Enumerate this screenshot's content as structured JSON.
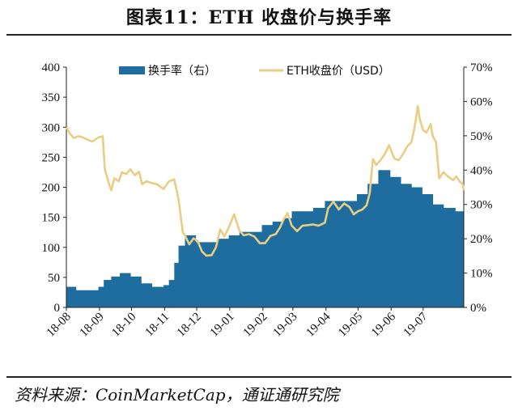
{
  "title": "图表11：ETH 收盘价与换手率",
  "source": "资料来源：CoinMarketCap，通证通研究院",
  "chart_data": {
    "type": "combo",
    "colors": {
      "bar": "#1f6d9e",
      "line": "#e8cd83"
    },
    "legend": {
      "placement": "top",
      "entries": [
        "换手率（右）",
        "ETH收盘价（USD）"
      ]
    },
    "x_ticks": [
      "18-08",
      "18-09",
      "18-10",
      "18-11",
      "18-12",
      "19-01",
      "19-02",
      "19-03",
      "19-04",
      "19-05",
      "19-06",
      "19-07"
    ],
    "y_left": {
      "ticks": [
        "0",
        "50",
        "100",
        "150",
        "200",
        "250",
        "300",
        "350",
        "400"
      ],
      "lim": [
        0,
        400
      ]
    },
    "y_right": {
      "ticks": [
        "0%",
        "10%",
        "20%",
        "30%",
        "40%",
        "50%",
        "60%",
        "70%"
      ],
      "lim": [
        0,
        70
      ]
    },
    "series": [
      {
        "name": "ETH收盘价（USD）",
        "axis": "left",
        "kind": "line",
        "points": [
          [
            "2018-08-01",
            300
          ],
          [
            "2018-08-04",
            290
          ],
          [
            "2018-08-08",
            282
          ],
          [
            "2018-08-12",
            285
          ],
          [
            "2018-08-15",
            284
          ],
          [
            "2018-08-20",
            280
          ],
          [
            "2018-08-25",
            276
          ],
          [
            "2018-08-31",
            283
          ],
          [
            "2018-09-04",
            285
          ],
          [
            "2018-09-06",
            230
          ],
          [
            "2018-09-10",
            205
          ],
          [
            "2018-09-12",
            195
          ],
          [
            "2018-09-15",
            215
          ],
          [
            "2018-09-19",
            210
          ],
          [
            "2018-09-22",
            225
          ],
          [
            "2018-09-26",
            222
          ],
          [
            "2018-09-30",
            230
          ],
          [
            "2018-10-04",
            220
          ],
          [
            "2018-10-08",
            226
          ],
          [
            "2018-10-11",
            205
          ],
          [
            "2018-10-15",
            210
          ],
          [
            "2018-10-20",
            207
          ],
          [
            "2018-10-25",
            205
          ],
          [
            "2018-10-31",
            197
          ],
          [
            "2018-11-05",
            210
          ],
          [
            "2018-11-10",
            213
          ],
          [
            "2018-11-14",
            180
          ],
          [
            "2018-11-18",
            125
          ],
          [
            "2018-11-20",
            120
          ],
          [
            "2018-11-24",
            105
          ],
          [
            "2018-11-28",
            115
          ],
          [
            "2018-12-02",
            110
          ],
          [
            "2018-12-06",
            93
          ],
          [
            "2018-12-10",
            86
          ],
          [
            "2018-12-15",
            87
          ],
          [
            "2018-12-19",
            100
          ],
          [
            "2018-12-23",
            130
          ],
          [
            "2018-12-27",
            118
          ],
          [
            "2018-12-31",
            133
          ],
          [
            "2019-01-05",
            155
          ],
          [
            "2019-01-10",
            128
          ],
          [
            "2019-01-14",
            120
          ],
          [
            "2019-01-19",
            122
          ],
          [
            "2019-01-24",
            118
          ],
          [
            "2019-01-29",
            107
          ],
          [
            "2019-02-03",
            107
          ],
          [
            "2019-02-08",
            119
          ],
          [
            "2019-02-13",
            122
          ],
          [
            "2019-02-17",
            133
          ],
          [
            "2019-02-20",
            145
          ],
          [
            "2019-02-24",
            157
          ],
          [
            "2019-02-28",
            136
          ],
          [
            "2019-03-05",
            127
          ],
          [
            "2019-03-10",
            136
          ],
          [
            "2019-03-15",
            137
          ],
          [
            "2019-03-20",
            138
          ],
          [
            "2019-03-25",
            136
          ],
          [
            "2019-03-31",
            141
          ],
          [
            "2019-04-03",
            165
          ],
          [
            "2019-04-08",
            176
          ],
          [
            "2019-04-13",
            163
          ],
          [
            "2019-04-18",
            173
          ],
          [
            "2019-04-23",
            167
          ],
          [
            "2019-04-27",
            155
          ],
          [
            "2019-05-01",
            160
          ],
          [
            "2019-05-05",
            163
          ],
          [
            "2019-05-09",
            170
          ],
          [
            "2019-05-12",
            190
          ],
          [
            "2019-05-15",
            247
          ],
          [
            "2019-05-18",
            237
          ],
          [
            "2019-05-22",
            245
          ],
          [
            "2019-05-26",
            255
          ],
          [
            "2019-05-30",
            270
          ],
          [
            "2019-06-04",
            248
          ],
          [
            "2019-06-08",
            245
          ],
          [
            "2019-06-12",
            255
          ],
          [
            "2019-06-16",
            268
          ],
          [
            "2019-06-20",
            275
          ],
          [
            "2019-06-23",
            300
          ],
          [
            "2019-06-26",
            335
          ],
          [
            "2019-06-28",
            312
          ],
          [
            "2019-07-01",
            295
          ],
          [
            "2019-07-04",
            291
          ],
          [
            "2019-07-08",
            305
          ],
          [
            "2019-07-10",
            285
          ],
          [
            "2019-07-13",
            275
          ],
          [
            "2019-07-16",
            215
          ],
          [
            "2019-07-20",
            225
          ],
          [
            "2019-07-25",
            217
          ],
          [
            "2019-07-29",
            212
          ],
          [
            "2019-08-01",
            218
          ],
          [
            "2019-08-04",
            210
          ],
          [
            "2019-08-07",
            205
          ],
          [
            "2019-08-08",
            195
          ]
        ]
      },
      {
        "name": "换手率（右）",
        "axis": "right",
        "kind": "area",
        "points": [
          [
            "2018-08-01",
            6
          ],
          [
            "2018-08-10",
            5
          ],
          [
            "2018-08-20",
            5
          ],
          [
            "2018-08-31",
            6
          ],
          [
            "2018-09-05",
            8
          ],
          [
            "2018-09-12",
            9
          ],
          [
            "2018-09-20",
            10
          ],
          [
            "2018-09-30",
            9
          ],
          [
            "2018-10-10",
            7
          ],
          [
            "2018-10-20",
            6
          ],
          [
            "2018-10-31",
            6.5
          ],
          [
            "2018-11-05",
            8
          ],
          [
            "2018-11-10",
            13
          ],
          [
            "2018-11-14",
            18
          ],
          [
            "2018-11-20",
            21
          ],
          [
            "2018-11-30",
            19
          ],
          [
            "2018-12-10",
            19
          ],
          [
            "2018-12-20",
            20
          ],
          [
            "2018-12-31",
            21
          ],
          [
            "2019-01-10",
            22
          ],
          [
            "2019-01-20",
            22
          ],
          [
            "2019-01-31",
            24
          ],
          [
            "2019-02-10",
            25
          ],
          [
            "2019-02-20",
            26
          ],
          [
            "2019-02-28",
            28
          ],
          [
            "2019-03-10",
            28
          ],
          [
            "2019-03-20",
            29
          ],
          [
            "2019-03-31",
            31
          ],
          [
            "2019-04-10",
            31
          ],
          [
            "2019-04-20",
            31
          ],
          [
            "2019-04-30",
            33
          ],
          [
            "2019-05-10",
            36
          ],
          [
            "2019-05-20",
            40
          ],
          [
            "2019-05-31",
            38
          ],
          [
            "2019-06-10",
            36
          ],
          [
            "2019-06-20",
            35
          ],
          [
            "2019-06-30",
            33
          ],
          [
            "2019-07-10",
            30
          ],
          [
            "2019-07-20",
            29
          ],
          [
            "2019-07-31",
            28
          ],
          [
            "2019-08-08",
            27
          ]
        ]
      }
    ]
  }
}
